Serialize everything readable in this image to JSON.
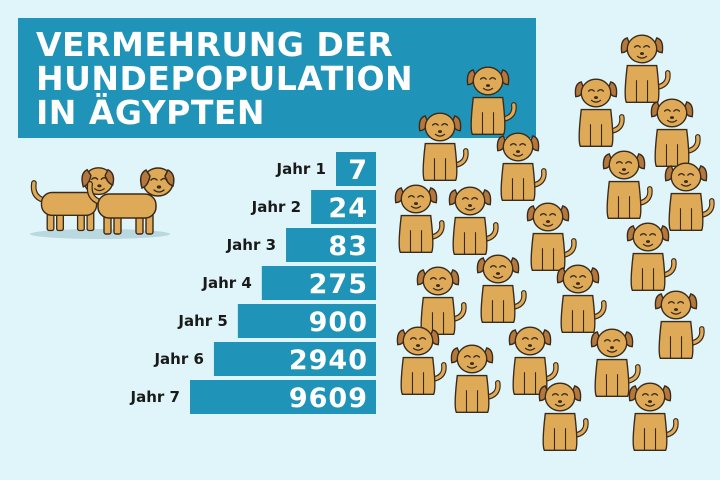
{
  "title_lines": [
    "VERMEHRUNG DER",
    "HUNDEPOPULATION",
    "IN ÄGYPTEN"
  ],
  "colors": {
    "background": "#dff5fa",
    "bar": "#1f94b8",
    "title_bg": "#1f94b8",
    "dog_body": "#deaa57",
    "dog_ear": "#b4783c",
    "outline": "#3a2a1a"
  },
  "chart_data": {
    "type": "bar",
    "orientation": "horizontal",
    "title": "VERMEHRUNG DER HUNDEPOPULATION IN ÄGYPTEN",
    "categories": [
      "Jahr 1",
      "Jahr 2",
      "Jahr 3",
      "Jahr 4",
      "Jahr 5",
      "Jahr 6",
      "Jahr 7"
    ],
    "values": [
      7,
      24,
      83,
      275,
      900,
      2940,
      9609
    ],
    "value_labels": [
      "7",
      "24",
      "83",
      "275",
      "900",
      "2940",
      "9609"
    ],
    "xlabel": "",
    "ylabel": "",
    "grid": false,
    "legend": "none"
  },
  "icons": {
    "pair": "dog-pair-icon",
    "single": "dog-icon"
  }
}
